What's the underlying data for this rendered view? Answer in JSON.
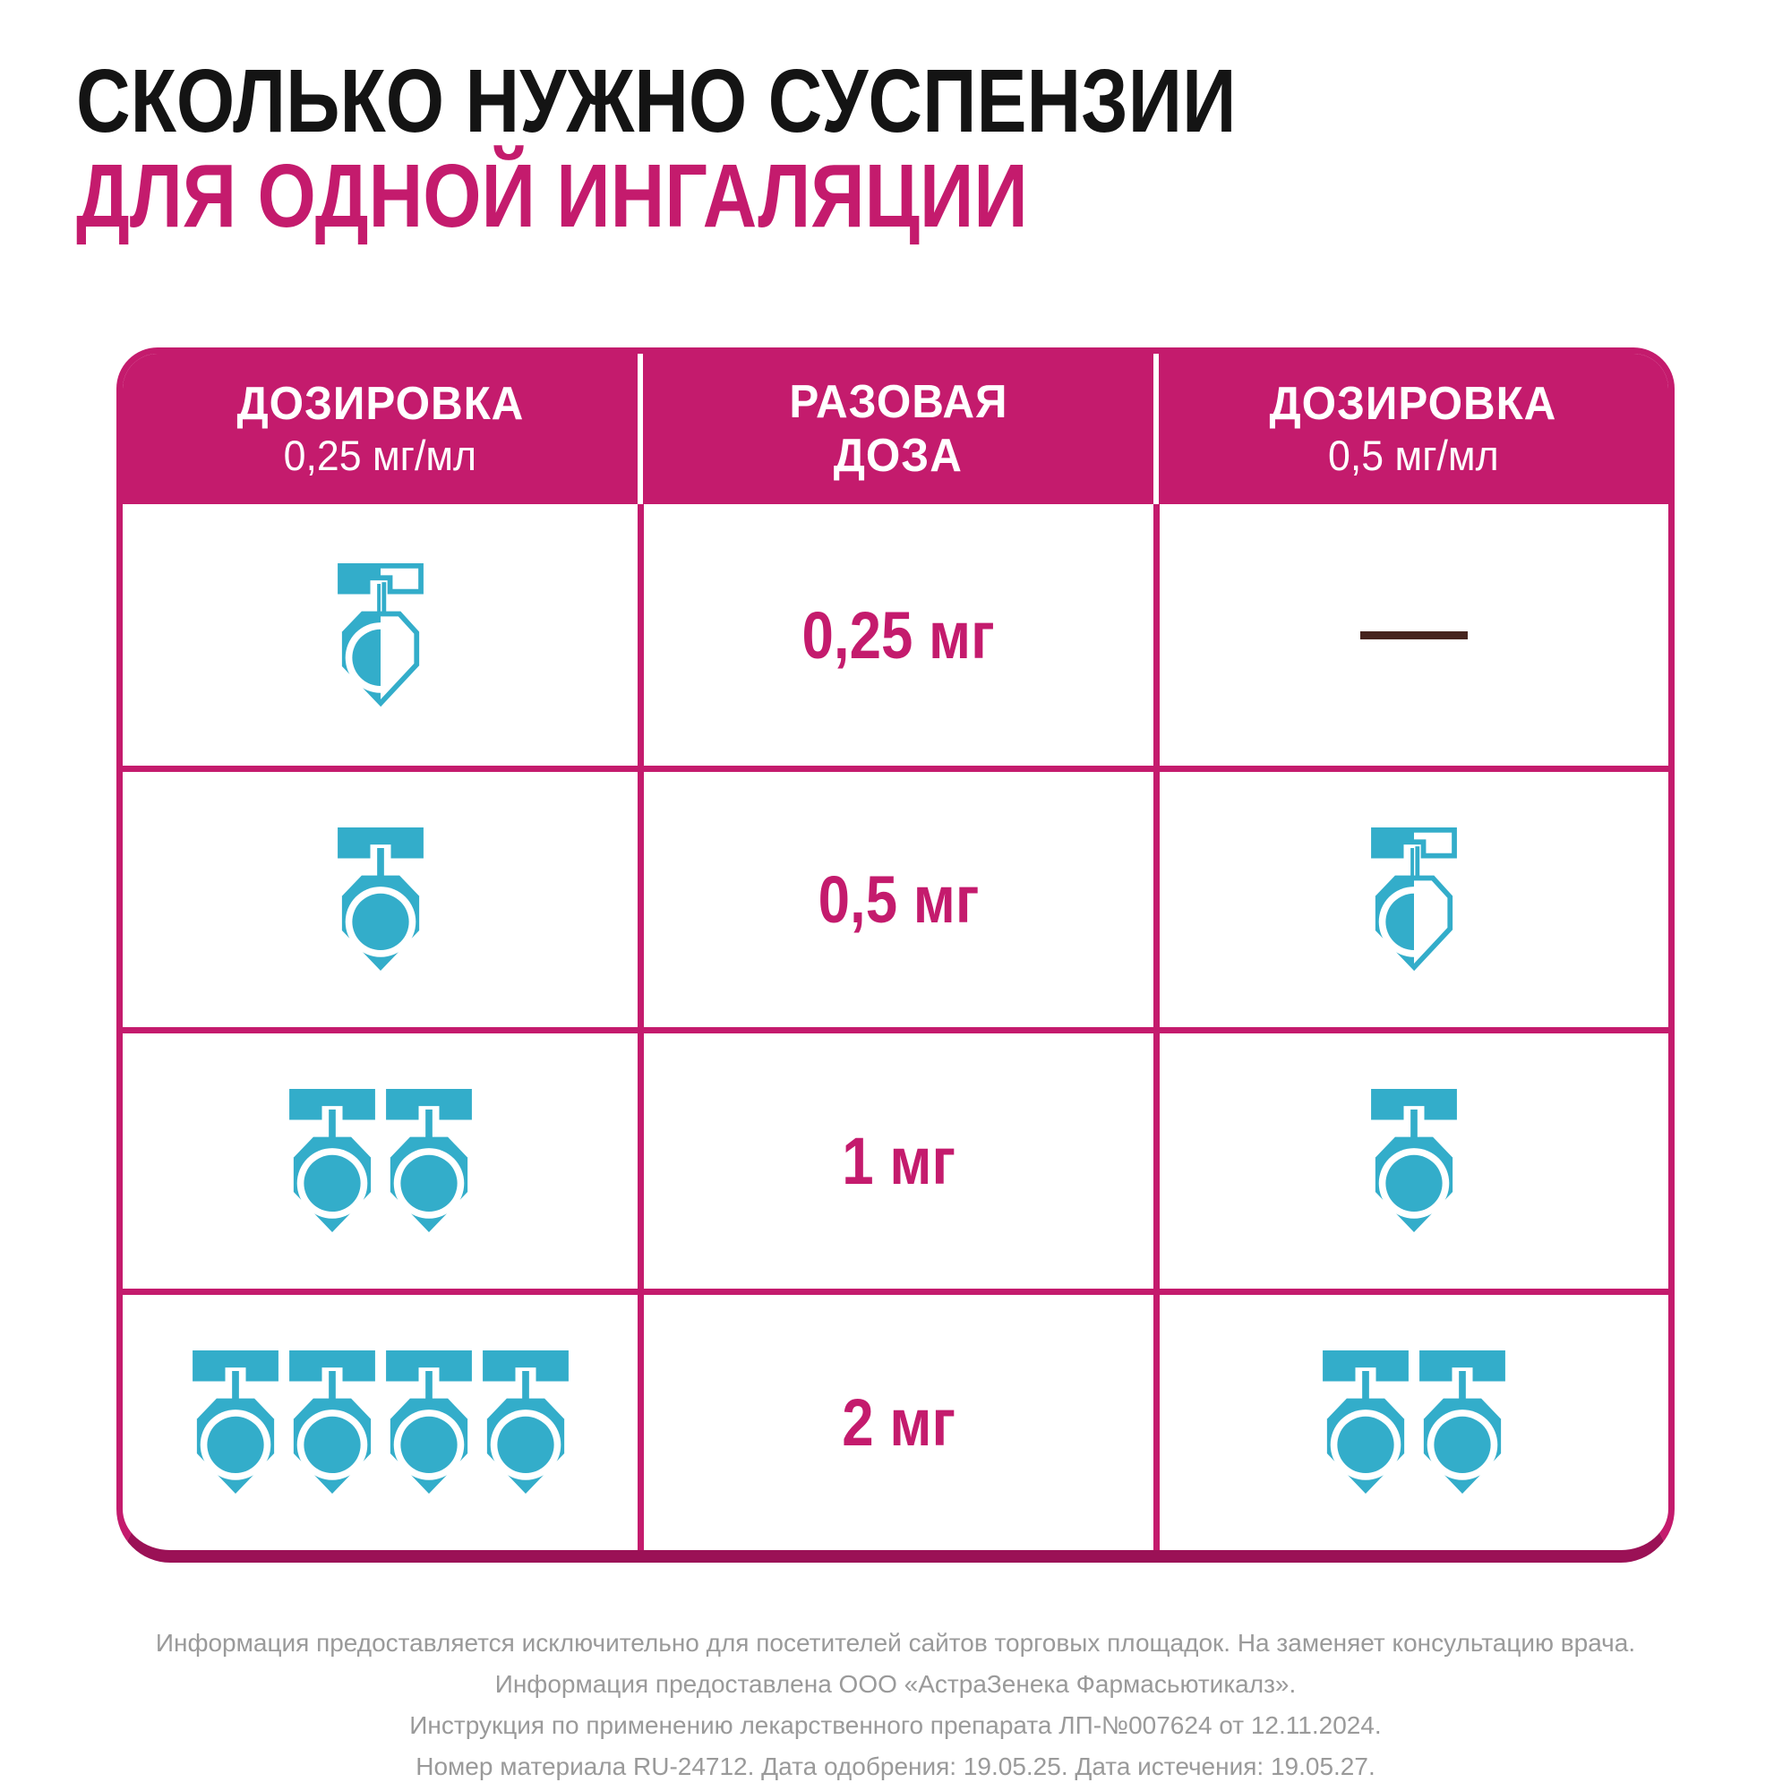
{
  "title": {
    "line1": "СКОЛЬКО НУЖНО СУСПЕНЗИИ",
    "line2": "ДЛЯ ОДНОЙ ИНГАЛЯЦИИ"
  },
  "colors": {
    "magenta": "#C41B6D",
    "magenta_dark": "#9B1156",
    "teal": "#33ADCA",
    "dash_brown": "#46241E",
    "title_black": "#141414",
    "footer_gray": "#9A9A9A"
  },
  "icons": {
    "ampoule_full": "ampoule-full-icon",
    "ampoule_half": "ampoule-half-icon",
    "no_dose": "no-dose-dash"
  },
  "table": {
    "header": [
      {
        "title": "ДОЗИРОВКА",
        "subtitle": "0,25 мг/мл"
      },
      {
        "title": "РАЗОВАЯ",
        "subtitle": "ДОЗА"
      },
      {
        "title": "ДОЗИРОВКА",
        "subtitle": "0,5 мг/мл"
      }
    ],
    "rows": [
      {
        "dose": "0,25 мг",
        "left": {
          "full": 0,
          "half": 1
        },
        "right": {
          "full": 0,
          "half": 0,
          "dash": true
        }
      },
      {
        "dose": "0,5 мг",
        "left": {
          "full": 1,
          "half": 0
        },
        "right": {
          "full": 0,
          "half": 1
        }
      },
      {
        "dose": "1 мг",
        "left": {
          "full": 2,
          "half": 0
        },
        "right": {
          "full": 1,
          "half": 0
        }
      },
      {
        "dose": "2 мг",
        "left": {
          "full": 4,
          "half": 0
        },
        "right": {
          "full": 2,
          "half": 0
        }
      }
    ]
  },
  "footer": {
    "lines": [
      "Информация предоставляется исключительно для посетителей сайтов торговых площадок. На заменяет консультацию врача.",
      "Информация предоставлена ООО «АстраЗенека Фармасьютикалз».",
      "Инструкция по применению лекарственного препарата ЛП-№007624 от 12.11.2024.",
      "Номер материала RU-24712. Дата одобрения: 19.05.25. Дата истечения: 19.05.27."
    ]
  }
}
